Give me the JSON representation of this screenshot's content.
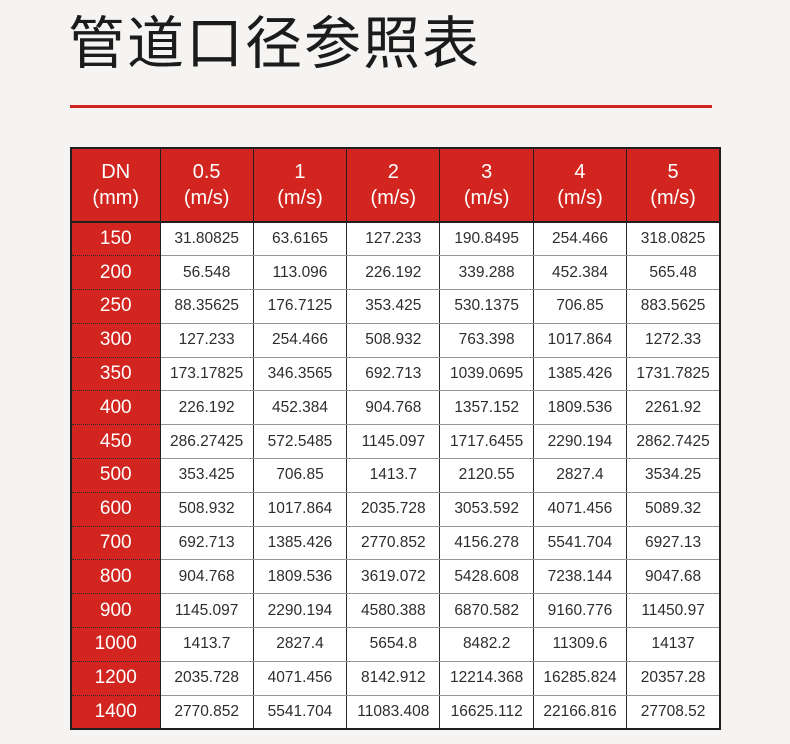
{
  "page": {
    "title": "管道口径参照表",
    "accent_color": "#d0241e",
    "background_color": "#f5f4f2",
    "header_bg_color": "#d2251f"
  },
  "chart_data": {
    "type": "table",
    "title": "管道口径参照表",
    "columns": [
      {
        "line1": "DN",
        "line2": "(mm)"
      },
      {
        "line1": "0.5",
        "line2": "(m/s)"
      },
      {
        "line1": "1",
        "line2": "(m/s)"
      },
      {
        "line1": "2",
        "line2": "(m/s)"
      },
      {
        "line1": "3",
        "line2": "(m/s)"
      },
      {
        "line1": "4",
        "line2": "(m/s)"
      },
      {
        "line1": "5",
        "line2": "(m/s)"
      }
    ],
    "rows": [
      {
        "dn": "150",
        "values": [
          "31.80825",
          "63.6165",
          "127.233",
          "190.8495",
          "254.466",
          "318.0825"
        ]
      },
      {
        "dn": "200",
        "values": [
          "56.548",
          "113.096",
          "226.192",
          "339.288",
          "452.384",
          "565.48"
        ]
      },
      {
        "dn": "250",
        "values": [
          "88.35625",
          "176.7125",
          "353.425",
          "530.1375",
          "706.85",
          "883.5625"
        ]
      },
      {
        "dn": "300",
        "values": [
          "127.233",
          "254.466",
          "508.932",
          "763.398",
          "1017.864",
          "1272.33"
        ]
      },
      {
        "dn": "350",
        "values": [
          "173.17825",
          "346.3565",
          "692.713",
          "1039.0695",
          "1385.426",
          "1731.7825"
        ]
      },
      {
        "dn": "400",
        "values": [
          "226.192",
          "452.384",
          "904.768",
          "1357.152",
          "1809.536",
          "2261.92"
        ]
      },
      {
        "dn": "450",
        "values": [
          "286.27425",
          "572.5485",
          "1145.097",
          "1717.6455",
          "2290.194",
          "2862.7425"
        ]
      },
      {
        "dn": "500",
        "values": [
          "353.425",
          "706.85",
          "1413.7",
          "2120.55",
          "2827.4",
          "3534.25"
        ]
      },
      {
        "dn": "600",
        "values": [
          "508.932",
          "1017.864",
          "2035.728",
          "3053.592",
          "4071.456",
          "5089.32"
        ]
      },
      {
        "dn": "700",
        "values": [
          "692.713",
          "1385.426",
          "2770.852",
          "4156.278",
          "5541.704",
          "6927.13"
        ]
      },
      {
        "dn": "800",
        "values": [
          "904.768",
          "1809.536",
          "3619.072",
          "5428.608",
          "7238.144",
          "9047.68"
        ]
      },
      {
        "dn": "900",
        "values": [
          "1145.097",
          "2290.194",
          "4580.388",
          "6870.582",
          "9160.776",
          "11450.97"
        ]
      },
      {
        "dn": "1000",
        "values": [
          "1413.7",
          "2827.4",
          "5654.8",
          "8482.2",
          "11309.6",
          "14137"
        ]
      },
      {
        "dn": "1200",
        "values": [
          "2035.728",
          "4071.456",
          "8142.912",
          "12214.368",
          "16285.824",
          "20357.28"
        ]
      },
      {
        "dn": "1400",
        "values": [
          "2770.852",
          "5541.704",
          "11083.408",
          "16625.112",
          "22166.816",
          "27708.52"
        ]
      }
    ]
  }
}
